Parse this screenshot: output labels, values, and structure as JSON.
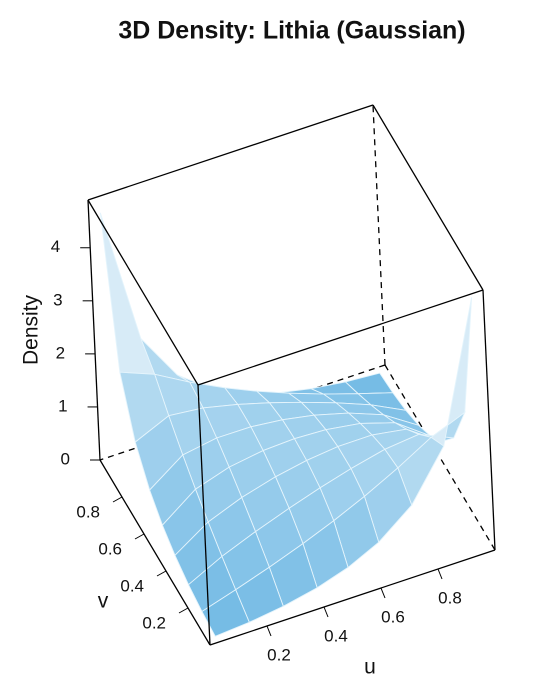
{
  "chart_data": {
    "type": "surface",
    "title": "3D Density: Lithia (Gaussian)",
    "xlabel": "u",
    "ylabel": "v",
    "zlabel": "Density",
    "x": [
      0.03,
      0.15,
      0.27,
      0.39,
      0.5,
      0.61,
      0.73,
      0.85,
      0.97
    ],
    "y": [
      0.03,
      0.15,
      0.27,
      0.39,
      0.5,
      0.61,
      0.73,
      0.85,
      0.97
    ],
    "z": [
      [
        0.006,
        0.055,
        0.141,
        0.276,
        0.462,
        0.74,
        1.225,
        2.124,
        4.71
      ],
      [
        0.055,
        0.25,
        0.459,
        0.69,
        0.924,
        1.186,
        1.507,
        1.869,
        2.124
      ],
      [
        0.141,
        0.459,
        0.712,
        0.937,
        1.125,
        1.291,
        1.439,
        1.507,
        1.225
      ],
      [
        0.276,
        0.69,
        0.937,
        1.112,
        1.223,
        1.287,
        1.291,
        1.186,
        0.74
      ],
      [
        0.462,
        0.924,
        1.125,
        1.223,
        1.25,
        1.223,
        1.125,
        0.924,
        0.462
      ],
      [
        0.74,
        1.186,
        1.291,
        1.287,
        1.223,
        1.112,
        0.937,
        0.69,
        0.276
      ],
      [
        1.225,
        1.507,
        1.439,
        1.291,
        1.125,
        0.937,
        0.712,
        0.459,
        0.141
      ],
      [
        2.124,
        1.869,
        1.507,
        1.186,
        0.924,
        0.69,
        0.459,
        0.25,
        0.055
      ],
      [
        4.71,
        2.124,
        1.225,
        0.74,
        0.462,
        0.276,
        0.141,
        0.055,
        0.006
      ]
    ],
    "xlim": [
      0,
      1
    ],
    "ylim": [
      0,
      1
    ],
    "zlim": [
      0,
      4.9
    ],
    "xticks": [
      0.2,
      0.4,
      0.6,
      0.8
    ],
    "yticks": [
      0.2,
      0.4,
      0.6,
      0.8
    ],
    "zticks": [
      0,
      1,
      2,
      3,
      4
    ],
    "color": "#5aaee0"
  }
}
